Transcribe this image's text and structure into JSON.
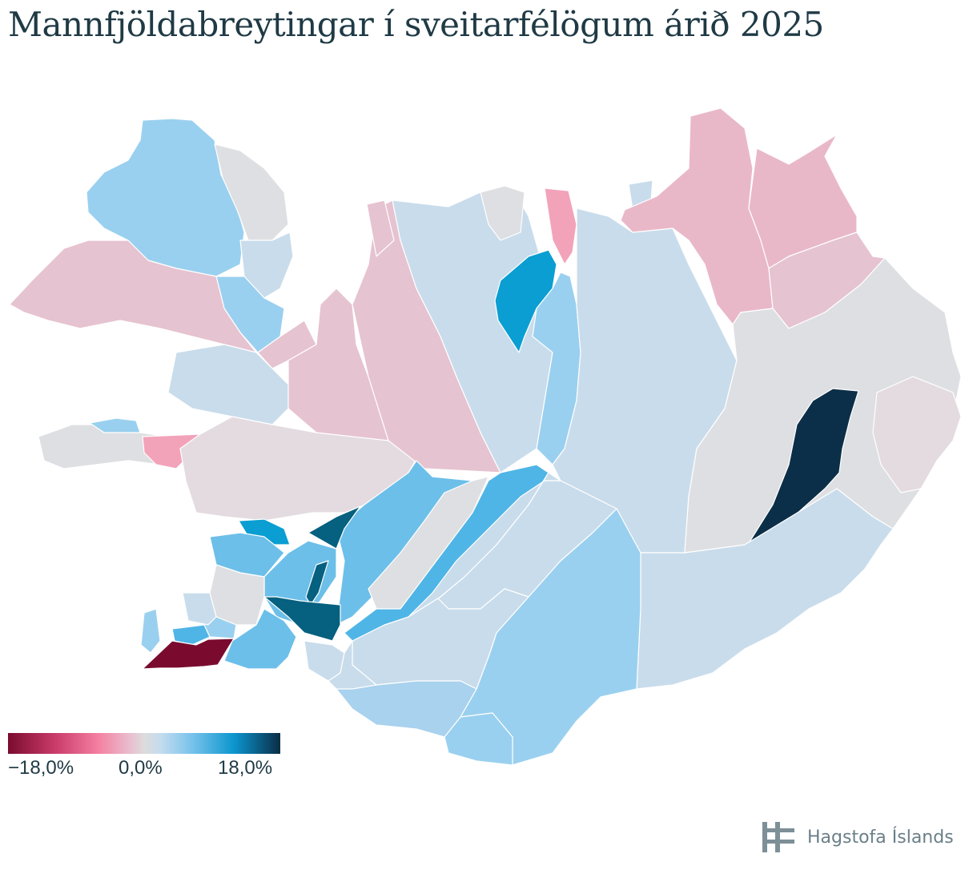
{
  "title": "Mannfjöldabreytingar í sveitarfélögum árið 2025",
  "legend": {
    "min_label": "−18,0%",
    "mid_label": "0,0%",
    "max_label": "18,0%",
    "min_value": -18.0,
    "max_value": 18.0,
    "colors": [
      "#7a0b2f",
      "#f47fa0",
      "#dcdcdc",
      "#7cc4ec",
      "#0a2d45"
    ]
  },
  "brand": {
    "name": "Hagstofa Íslands",
    "logo_icon": "hagstofa-logo-icon"
  },
  "map": {
    "region": "Iceland",
    "colors": {
      "strong_decline": "#7a0b2f",
      "decline": "#f2a3b9",
      "slight_decline": "#e6c3d0",
      "neutral": "#dedfe2",
      "slight_growth": "#c9dceb",
      "growth": "#9ad0ef",
      "strong_growth": "#4fb5e6",
      "high_growth": "#0a9ed2",
      "very_high_growth": "#06607f",
      "max_growth": "#0b2f48"
    }
  }
}
